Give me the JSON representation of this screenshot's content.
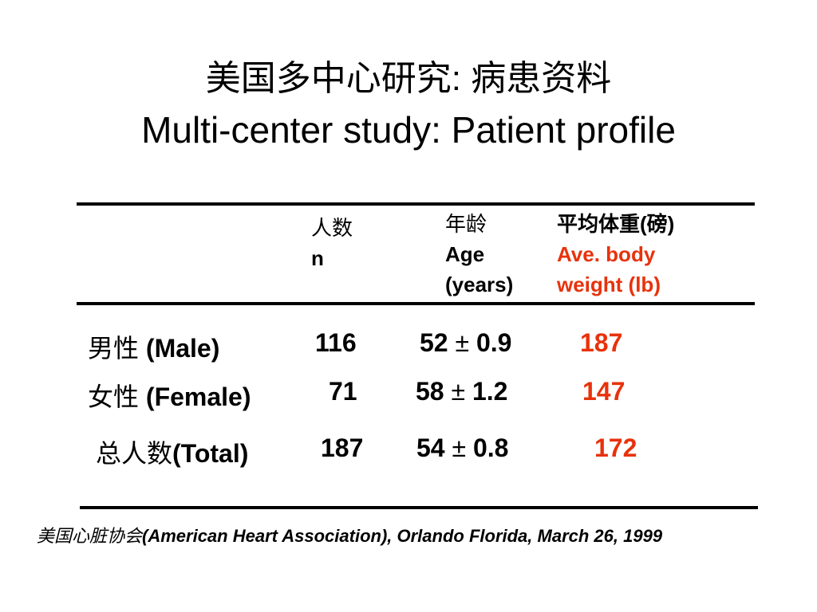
{
  "title": {
    "chinese": "美国多中心研究: 病患资料",
    "english": "Multi-center study: Patient profile"
  },
  "table": {
    "columns": [
      {
        "cn": "人数",
        "en": "n"
      },
      {
        "cn": "年龄",
        "en_line1": "Age",
        "en_line2": "(years)"
      },
      {
        "cn": "平均体重(磅)",
        "en_line1": "Ave. body",
        "en_line2": "weight (lb)"
      }
    ],
    "rows": [
      {
        "label_cn": "男性",
        "label_en": " (Male)",
        "n": "116",
        "age_mean": "52",
        "pm": "±",
        "age_sd": " 0.9",
        "weight": "187"
      },
      {
        "label_cn": "女性",
        "label_en": " (Female)",
        "n": "71",
        "age_mean": "58",
        "pm": "±",
        "age_sd": " 1.2",
        "weight": "147"
      },
      {
        "label_cn": "总人数",
        "label_en": "(Total)",
        "n": "187",
        "age_mean": "54",
        "pm": "±",
        "age_sd": " 0.8",
        "weight": "172"
      }
    ]
  },
  "footer": {
    "cn": "美国心脏协会",
    "en": "(American Heart Association), Orlando Florida, March 26, 1999"
  },
  "colors": {
    "accent_red": "#e8320c"
  }
}
